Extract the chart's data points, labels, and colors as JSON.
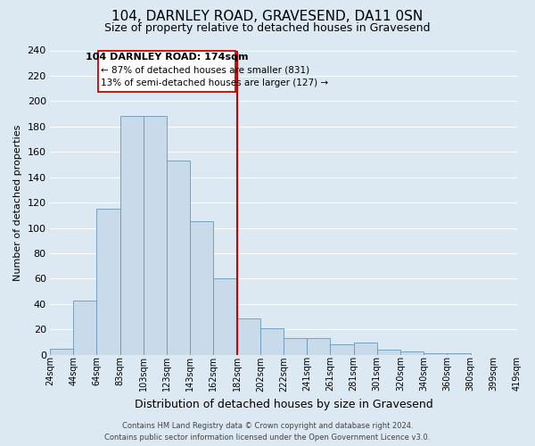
{
  "title": "104, DARNLEY ROAD, GRAVESEND, DA11 0SN",
  "subtitle": "Size of property relative to detached houses in Gravesend",
  "bar_labels": [
    "24sqm",
    "44sqm",
    "64sqm",
    "83sqm",
    "103sqm",
    "123sqm",
    "143sqm",
    "162sqm",
    "182sqm",
    "202sqm",
    "222sqm",
    "241sqm",
    "261sqm",
    "281sqm",
    "301sqm",
    "320sqm",
    "340sqm",
    "360sqm",
    "380sqm",
    "399sqm",
    "419sqm"
  ],
  "bar_heights": [
    5,
    43,
    115,
    188,
    188,
    153,
    105,
    60,
    29,
    21,
    13,
    13,
    8,
    10,
    4,
    3,
    1,
    1,
    0,
    0
  ],
  "bar_color": "#c9daea",
  "bar_edge_color": "#6699bb",
  "ylabel": "Number of detached properties",
  "xlabel": "Distribution of detached houses by size in Gravesend",
  "ylim": [
    0,
    240
  ],
  "yticks": [
    0,
    20,
    40,
    60,
    80,
    100,
    120,
    140,
    160,
    180,
    200,
    220,
    240
  ],
  "vline_color": "#cc0000",
  "annotation_title": "104 DARNLEY ROAD: 174sqm",
  "annotation_line1": "← 87% of detached houses are smaller (831)",
  "annotation_line2": "13% of semi-detached houses are larger (127) →",
  "annotation_box_edgecolor": "#cc0000",
  "bg_color": "#dce8f2",
  "plot_bg_color": "#dce8f2",
  "grid_color": "#ffffff",
  "footer_line1": "Contains HM Land Registry data © Crown copyright and database right 2024.",
  "footer_line2": "Contains public sector information licensed under the Open Government Licence v3.0.",
  "title_fontsize": 11,
  "subtitle_fontsize": 9,
  "tick_fontsize": 7,
  "ytick_fontsize": 8,
  "ylabel_fontsize": 8,
  "xlabel_fontsize": 9,
  "annotation_title_fontsize": 8,
  "annotation_sub_fontsize": 7.5,
  "footer_fontsize": 6
}
